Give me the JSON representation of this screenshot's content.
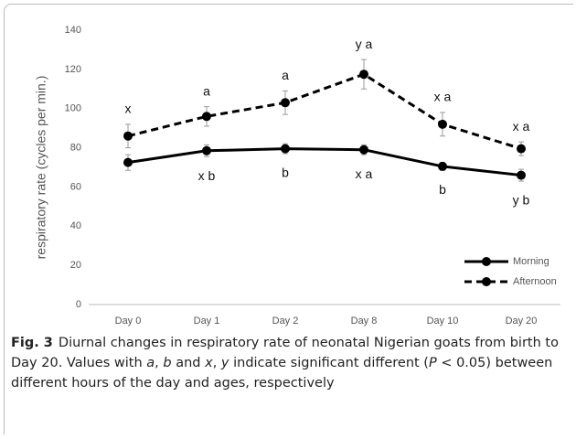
{
  "chart_data": {
    "type": "line",
    "categories": [
      "Day 0",
      "Day 1",
      "Day 2",
      "Day 8",
      "Day 10",
      "Day 20"
    ],
    "y_label": "respiratory rate (cycles per min.)",
    "ylim": [
      0,
      140
    ],
    "yticks": [
      0,
      20,
      40,
      60,
      80,
      100,
      120,
      140
    ],
    "legend": "lower right",
    "series": [
      {
        "name": "Morning",
        "color": "#000000",
        "dashed": false,
        "values": [
          72.5,
          78.5,
          79.5,
          79,
          70.5,
          66
        ],
        "errors": [
          4,
          3,
          2.5,
          2.5,
          2,
          3
        ],
        "labels": [
          null,
          "x b",
          "b",
          "x a",
          "b",
          "y b"
        ]
      },
      {
        "name": "Afternoon",
        "color": "#000000",
        "dashed": true,
        "values": [
          86,
          96,
          103,
          117.5,
          92,
          79.5
        ],
        "errors": [
          6,
          5,
          6,
          7.5,
          6,
          3.5
        ],
        "labels": [
          "x",
          "a",
          "a",
          "y a",
          "x a",
          "x a"
        ]
      }
    ]
  },
  "caption": {
    "label": "Fig. 3",
    "segments": [
      {
        "text": "Diurnal changes in respiratory rate of neonatal Nigerian goats from birth to Day 20. Values with ",
        "italic": false
      },
      {
        "text": "a",
        "italic": true
      },
      {
        "text": ", ",
        "italic": false
      },
      {
        "text": "b",
        "italic": true
      },
      {
        "text": " and ",
        "italic": false
      },
      {
        "text": "x",
        "italic": true
      },
      {
        "text": ", ",
        "italic": false
      },
      {
        "text": "y",
        "italic": true
      },
      {
        "text": " indicate significant different (",
        "italic": false
      },
      {
        "text": "P",
        "italic": true
      },
      {
        "text": " < 0.05) between different hours of the day and ages, respectively",
        "italic": false
      }
    ]
  }
}
